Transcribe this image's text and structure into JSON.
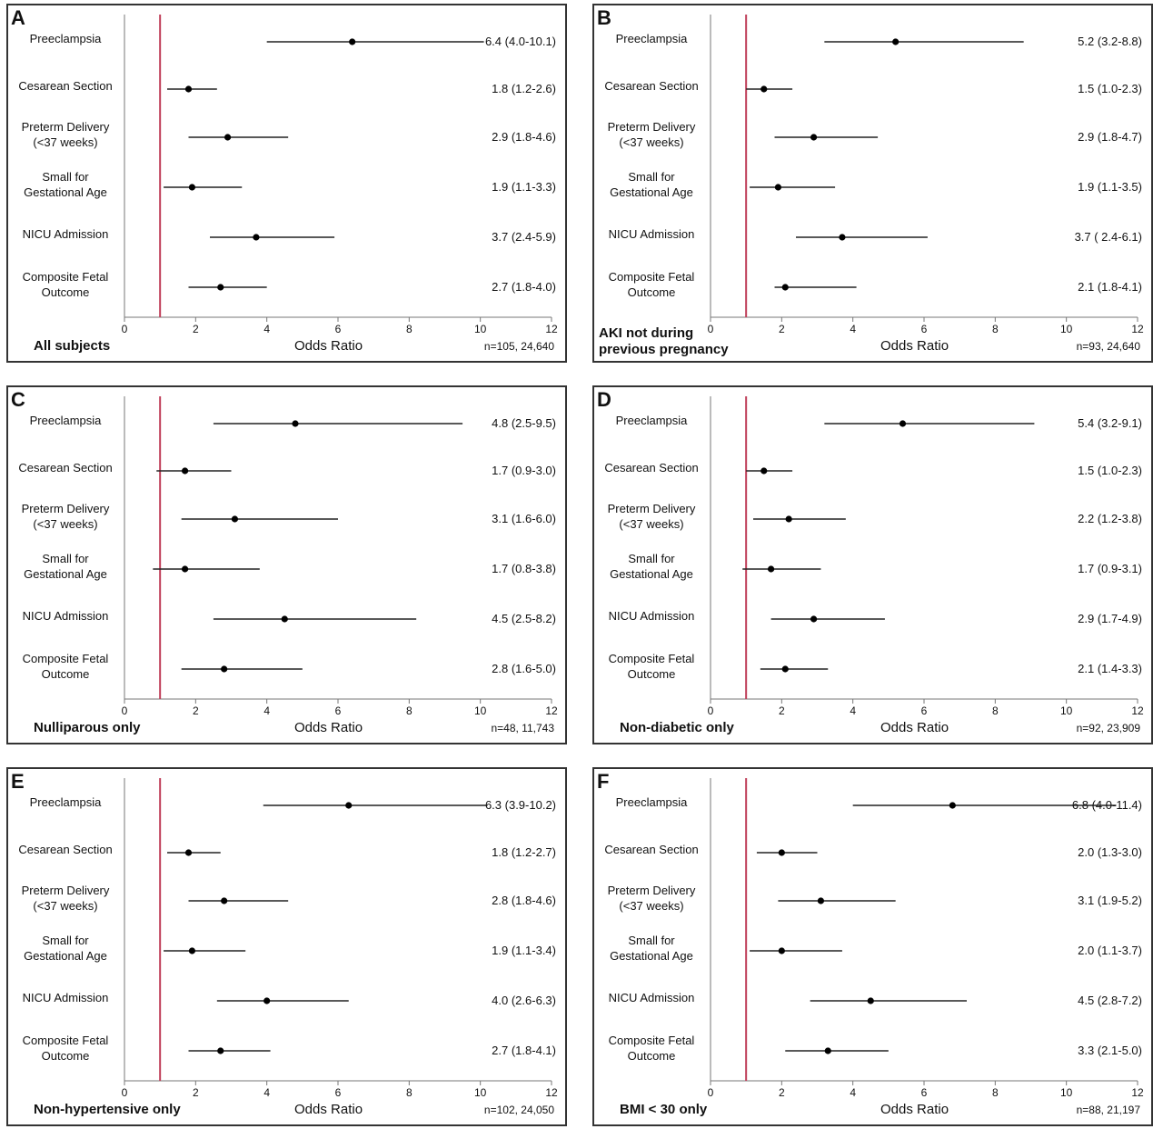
{
  "figure": {
    "xlabel": "Odds Ratio",
    "reference_color": "#c0405a",
    "ci_color": "#222222",
    "ticks": [
      0,
      2,
      4,
      6,
      8,
      10,
      12
    ]
  },
  "chart_data": [
    {
      "type": "forest",
      "letter": "A",
      "subset": "All subjects",
      "n": "n=105, 24,640",
      "xlabel": "Odds Ratio",
      "xlim": [
        0,
        12
      ],
      "reference": 1,
      "categories": [
        "Preeclampsia",
        "Cesarean Section",
        "Preterm Delivery\n(<37 weeks)",
        "Small for\nGestational Age",
        "NICU Admission",
        "Composite Fetal\nOutcome"
      ],
      "or": [
        6.4,
        1.8,
        2.9,
        1.9,
        3.7,
        2.7
      ],
      "lower": [
        4.0,
        1.2,
        1.8,
        1.1,
        2.4,
        1.8
      ],
      "upper": [
        10.1,
        2.6,
        4.6,
        3.3,
        5.9,
        4.0
      ],
      "labels": [
        "6.4 (4.0-10.1)",
        "1.8 (1.2-2.6)",
        "2.9 (1.8-4.6)",
        "1.9 (1.1-3.3)",
        "3.7 (2.4-5.9)",
        "2.7 (1.8-4.0)"
      ]
    },
    {
      "type": "forest",
      "letter": "B",
      "subset": "AKI not during\nprevious pregnancy",
      "n": "n=93, 24,640",
      "xlabel": "Odds Ratio",
      "xlim": [
        0,
        12
      ],
      "reference": 1,
      "categories": [
        "Preeclampsia",
        "Cesarean Section",
        "Preterm Delivery\n(<37 weeks)",
        "Small for\nGestational Age",
        "NICU Admission",
        "Composite Fetal\nOutcome"
      ],
      "or": [
        5.2,
        1.5,
        2.9,
        1.9,
        3.7,
        2.1
      ],
      "lower": [
        3.2,
        1.0,
        1.8,
        1.1,
        2.4,
        1.8
      ],
      "upper": [
        8.8,
        2.3,
        4.7,
        3.5,
        6.1,
        4.1
      ],
      "labels": [
        "5.2 (3.2-8.8)",
        "1.5 (1.0-2.3)",
        "2.9 (1.8-4.7)",
        "1.9 (1.1-3.5)",
        "3.7 ( 2.4-6.1)",
        "2.1 (1.8-4.1)"
      ]
    },
    {
      "type": "forest",
      "letter": "C",
      "subset": "Nulliparous only",
      "n": "n=48, 11,743",
      "xlabel": "Odds Ratio",
      "xlim": [
        0,
        12
      ],
      "reference": 1,
      "categories": [
        "Preeclampsia",
        "Cesarean Section",
        "Preterm Delivery\n(<37 weeks)",
        "Small for\nGestational Age",
        "NICU Admission",
        "Composite Fetal\nOutcome"
      ],
      "or": [
        4.8,
        1.7,
        3.1,
        1.7,
        4.5,
        2.8
      ],
      "lower": [
        2.5,
        0.9,
        1.6,
        0.8,
        2.5,
        1.6
      ],
      "upper": [
        9.5,
        3.0,
        6.0,
        3.8,
        8.2,
        5.0
      ],
      "labels": [
        "4.8 (2.5-9.5)",
        "1.7 (0.9-3.0)",
        "3.1 (1.6-6.0)",
        "1.7 (0.8-3.8)",
        "4.5 (2.5-8.2)",
        "2.8 (1.6-5.0)"
      ]
    },
    {
      "type": "forest",
      "letter": "D",
      "subset": "Non-diabetic only",
      "n": "n=92, 23,909",
      "xlabel": "Odds Ratio",
      "xlim": [
        0,
        12
      ],
      "reference": 1,
      "categories": [
        "Preeclampsia",
        "Cesarean Section",
        "Preterm Delivery\n(<37 weeks)",
        "Small for\nGestational Age",
        "NICU Admission",
        "Composite Fetal\nOutcome"
      ],
      "or": [
        5.4,
        1.5,
        2.2,
        1.7,
        2.9,
        2.1
      ],
      "lower": [
        3.2,
        1.0,
        1.2,
        0.9,
        1.7,
        1.4
      ],
      "upper": [
        9.1,
        2.3,
        3.8,
        3.1,
        4.9,
        3.3
      ],
      "labels": [
        "5.4 (3.2-9.1)",
        "1.5 (1.0-2.3)",
        "2.2 (1.2-3.8)",
        "1.7 (0.9-3.1)",
        "2.9 (1.7-4.9)",
        "2.1 (1.4-3.3)"
      ]
    },
    {
      "type": "forest",
      "letter": "E",
      "subset": "Non-hypertensive only",
      "n": "n=102, 24,050",
      "xlabel": "Odds Ratio",
      "xlim": [
        0,
        12
      ],
      "reference": 1,
      "categories": [
        "Preeclampsia",
        "Cesarean Section",
        "Preterm Delivery\n(<37 weeks)",
        "Small for\nGestational Age",
        "NICU Admission",
        "Composite Fetal\nOutcome"
      ],
      "or": [
        6.3,
        1.8,
        2.8,
        1.9,
        4.0,
        2.7
      ],
      "lower": [
        3.9,
        1.2,
        1.8,
        1.1,
        2.6,
        1.8
      ],
      "upper": [
        10.2,
        2.7,
        4.6,
        3.4,
        6.3,
        4.1
      ],
      "labels": [
        "6.3 (3.9-10.2)",
        "1.8 (1.2-2.7)",
        "2.8 (1.8-4.6)",
        "1.9 (1.1-3.4)",
        "4.0 (2.6-6.3)",
        "2.7 (1.8-4.1)"
      ]
    },
    {
      "type": "forest",
      "letter": "F",
      "subset": "BMI < 30 only",
      "n": "n=88, 21,197",
      "xlabel": "Odds Ratio",
      "xlim": [
        0,
        12
      ],
      "reference": 1,
      "categories": [
        "Preeclampsia",
        "Cesarean Section",
        "Preterm Delivery\n(<37 weeks)",
        "Small for\nGestational Age",
        "NICU Admission",
        "Composite Fetal\nOutcome"
      ],
      "or": [
        6.8,
        2.0,
        3.1,
        2.0,
        4.5,
        3.3
      ],
      "lower": [
        4.0,
        1.3,
        1.9,
        1.1,
        2.8,
        2.1
      ],
      "upper": [
        11.4,
        3.0,
        5.2,
        3.7,
        7.2,
        5.0
      ],
      "labels": [
        "6.8 (4.0-11.4)",
        "2.0 (1.3-3.0)",
        "3.1 (1.9-5.2)",
        "2.0 (1.1-3.7)",
        "4.5 (2.8-7.2)",
        "3.3 (2.1-5.0)"
      ]
    }
  ]
}
